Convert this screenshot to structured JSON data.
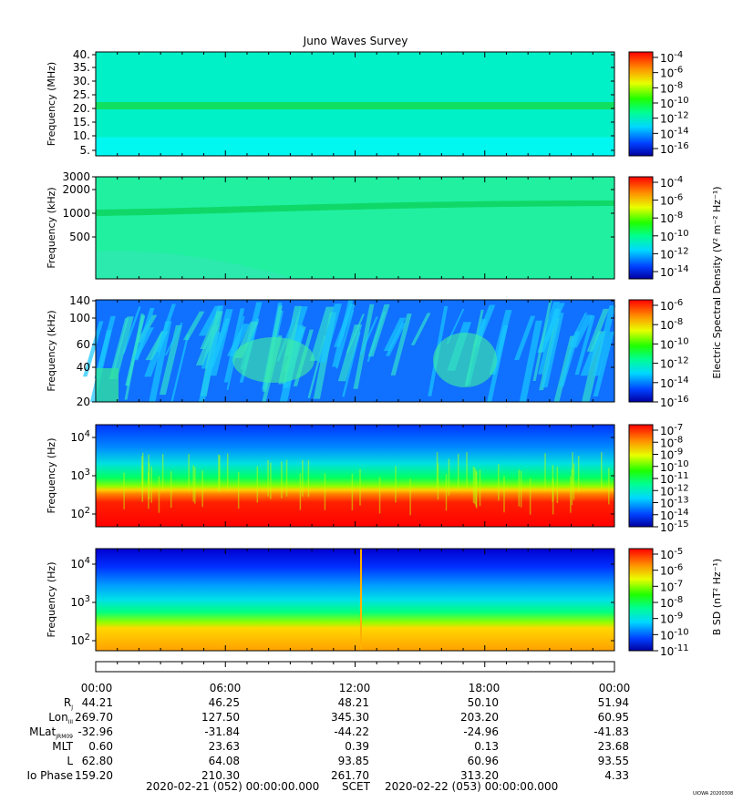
{
  "title": "Juno Waves Survey",
  "footer_left": "2020-02-21 (052) 00:00:00.000",
  "footer_mid": "SCET",
  "footer_right": "2020-02-22 (053) 00:00:00.000",
  "stamp": "UIOWA 20200308",
  "colorbar_labels": {
    "e": "Electric Spectral Density (V² m⁻² Hz⁻¹)",
    "b": "B SD (nT² Hz⁻¹)"
  },
  "chart_data": [
    {
      "type": "heatmap",
      "name": "panel1",
      "ylabel": "Frequency (MHz)",
      "yticks": [
        "40.",
        "35.",
        "30.",
        "25.",
        "20.",
        "15.",
        "10.",
        "5."
      ],
      "colorbar_ticks": [
        "10^-4",
        "10^-6",
        "10^-8",
        "10^-10",
        "10^-12",
        "10^-14",
        "10^-16"
      ],
      "colorscale_log10": [
        -17,
        -4
      ]
    },
    {
      "type": "heatmap",
      "name": "panel2",
      "ylabel": "Frequency (kHz)",
      "yticks": [
        "3000",
        "2000",
        "1000",
        "500"
      ],
      "colorbar_ticks": [
        "10^-4",
        "10^-6",
        "10^-8",
        "10^-10",
        "10^-12",
        "10^-14"
      ],
      "colorscale_log10": [
        -15,
        -3.5
      ]
    },
    {
      "type": "heatmap",
      "name": "panel3",
      "ylabel": "Frequency (kHz)",
      "yticks": [
        "140",
        "100",
        "60",
        "40",
        "20"
      ],
      "colorbar_ticks": [
        "10^-6",
        "10^-8",
        "10^-10",
        "10^-12",
        "10^-14",
        "10^-16"
      ],
      "colorscale_log10": [
        -16.5,
        -6
      ]
    },
    {
      "type": "heatmap",
      "name": "panel4",
      "ylabel": "Frequency (Hz)",
      "yticks": [
        "10^4",
        "10^3",
        "10^2"
      ],
      "colorbar_ticks": [
        "10^-7",
        "10^-8",
        "10^-9",
        "10^-10",
        "10^-11",
        "10^-12",
        "10^-13",
        "10^-14",
        "10^-15"
      ],
      "colorscale_log10": [
        -15,
        -7
      ]
    },
    {
      "type": "heatmap",
      "name": "panel5",
      "ylabel": "Frequency (Hz)",
      "yticks": [
        "10^4",
        "10^3",
        "10^2"
      ],
      "colorbar_ticks": [
        "10^-5",
        "10^-6",
        "10^-7",
        "10^-8",
        "10^-9",
        "10^-10",
        "10^-11"
      ],
      "colorscale_log10": [
        -11,
        -4.5
      ]
    }
  ],
  "ephemeris": {
    "times": [
      "00:00",
      "06:00",
      "12:00",
      "18:00",
      "00:00"
    ],
    "rows": [
      {
        "label": "RJ",
        "values": [
          "44.21",
          "46.25",
          "48.21",
          "50.10",
          "51.94"
        ]
      },
      {
        "label": "LonIII",
        "values": [
          "269.70",
          "127.50",
          "345.30",
          "203.20",
          "60.95"
        ]
      },
      {
        "label": "MLatJRM09",
        "values": [
          "-32.96",
          "-31.84",
          "-44.22",
          "-24.96",
          "-41.83"
        ]
      },
      {
        "label": "MLT",
        "values": [
          "0.60",
          "23.63",
          "0.39",
          "0.13",
          "23.68"
        ]
      },
      {
        "label": "L",
        "values": [
          "62.80",
          "64.08",
          "93.85",
          "60.96",
          "93.55"
        ]
      },
      {
        "label": "Io Phase",
        "values": [
          "159.20",
          "210.30",
          "261.70",
          "313.20",
          "4.33"
        ]
      }
    ]
  }
}
